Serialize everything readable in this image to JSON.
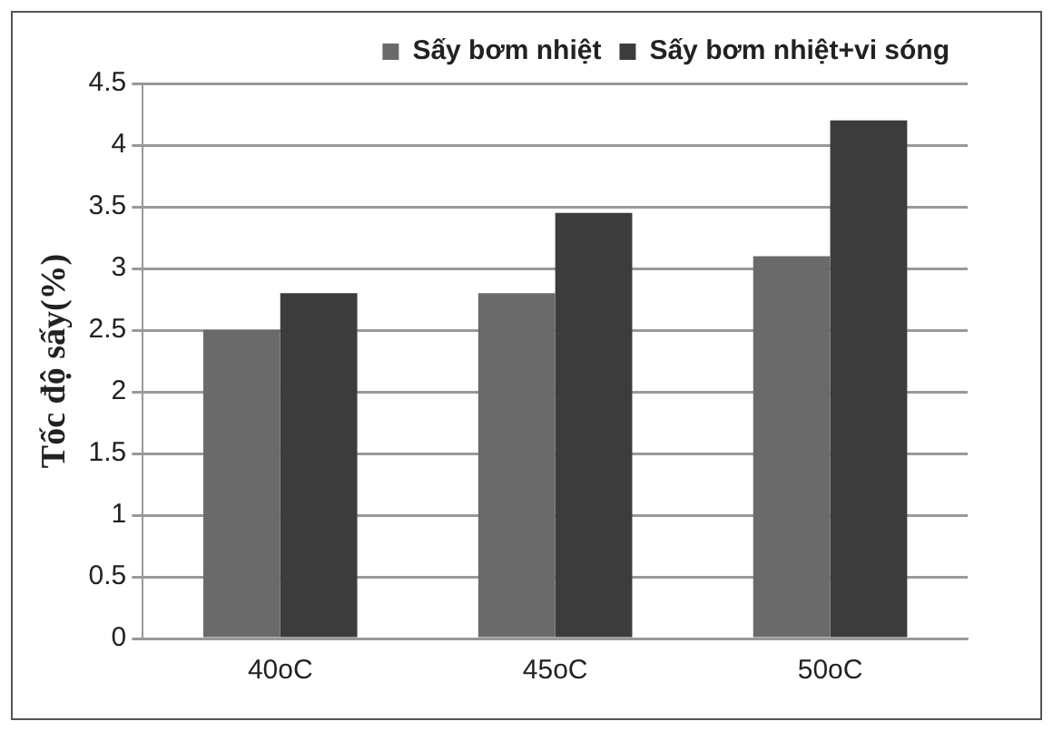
{
  "chart_data": {
    "type": "bar",
    "ylabel": "Tốc độ sấy(%)",
    "categories": [
      "40oC",
      "45oC",
      "50oC"
    ],
    "series": [
      {
        "name": "Sấy bơm nhiệt",
        "color": "#6a6a6a",
        "values": [
          2.5,
          2.8,
          3.1
        ]
      },
      {
        "name": "Sấy bơm nhiệt+vi sóng",
        "color": "#3c3c3c",
        "values": [
          2.8,
          3.45,
          4.2
        ]
      }
    ],
    "ylim": [
      0,
      4.5
    ],
    "yticks": [
      0,
      0.5,
      1,
      1.5,
      2,
      2.5,
      3,
      3.5,
      4,
      4.5
    ],
    "grid": "y",
    "legend": "top right"
  }
}
